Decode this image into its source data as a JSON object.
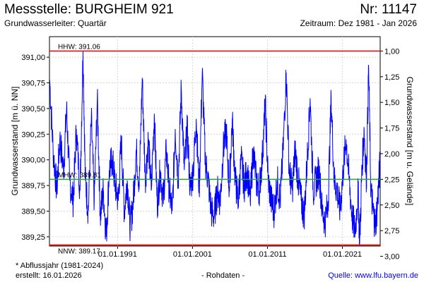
{
  "header": {
    "title": "Messstelle: BURGHEIM 921",
    "nr": "Nr: 11147",
    "aquifer": "Grundwasserleiter: Quartär",
    "period": "Zeitraum: Dez 1981 - Jan 2026"
  },
  "footer": {
    "abflussjahr": "* Abflussjahr (1981-2024)",
    "erstellt": "erstellt:  16.01.2026",
    "rohdaten": "- Rohdaten -",
    "quelle": "Quelle: www.lfu.bayern.de"
  },
  "chart_data": {
    "type": "line",
    "ylabel_left": "Grundwasserstand [m ü. NN]",
    "ylabel_right": "Grundwasserstand [m u. Gelände]",
    "ylim_left": [
      389.16,
      391.2
    ],
    "yticks_left": [
      "391,00",
      "390,75",
      "390,50",
      "390,25",
      "390,00",
      "389,75",
      "389,50",
      "389,25"
    ],
    "yticks_left_values": [
      391.0,
      390.75,
      390.5,
      390.25,
      390.0,
      389.75,
      389.5,
      389.25
    ],
    "yticks_right": [
      "1,00",
      "1,25",
      "1,50",
      "1,75",
      "2,00",
      "2,25",
      "2,50",
      "2,75",
      "3,00"
    ],
    "yticks_right_values": [
      1.0,
      1.25,
      1.5,
      1.75,
      2.0,
      2.25,
      2.5,
      2.75,
      3.0
    ],
    "xlim": [
      1981.92,
      2026.04
    ],
    "xticks": [
      "01.01.1991",
      "01.01.2001",
      "01.01.2011",
      "01.01.2021"
    ],
    "xticks_values": [
      1991,
      2001,
      2011,
      2021
    ],
    "grid": true,
    "reference_lines": [
      {
        "label": "HHW: 391.06",
        "value": 391.06,
        "color": "#ff0000"
      },
      {
        "label": "MHW: 389.81",
        "value": 389.81,
        "color": "#22aa22"
      },
      {
        "label": "NNW: 389.17",
        "value": 389.17,
        "color": "#ff0000"
      }
    ],
    "series": [
      {
        "color": "#0000ff",
        "points": [
          [
            1981.95,
            390.78
          ],
          [
            1982.4,
            390.1
          ],
          [
            1982.9,
            389.7
          ],
          [
            1983.3,
            390.2
          ],
          [
            1983.8,
            389.9
          ],
          [
            1984.2,
            390.5
          ],
          [
            1984.6,
            389.8
          ],
          [
            1985.1,
            389.6
          ],
          [
            1985.5,
            390.3
          ],
          [
            1986.0,
            389.7
          ],
          [
            1986.4,
            391.06
          ],
          [
            1986.7,
            389.8
          ],
          [
            1987.1,
            389.5
          ],
          [
            1987.5,
            390.4
          ],
          [
            1987.9,
            389.6
          ],
          [
            1988.3,
            390.6
          ],
          [
            1988.7,
            389.45
          ],
          [
            1989.1,
            389.7
          ],
          [
            1989.5,
            389.25
          ],
          [
            1989.9,
            389.9
          ],
          [
            1990.3,
            390.0
          ],
          [
            1990.7,
            389.75
          ],
          [
            1991.1,
            389.6
          ],
          [
            1991.5,
            390.2
          ],
          [
            1991.9,
            389.5
          ],
          [
            1992.3,
            389.8
          ],
          [
            1992.7,
            389.35
          ],
          [
            1993.1,
            389.6
          ],
          [
            1993.5,
            390.1
          ],
          [
            1993.9,
            389.75
          ],
          [
            1994.3,
            390.8
          ],
          [
            1994.7,
            389.8
          ],
          [
            1995.1,
            390.2
          ],
          [
            1995.5,
            389.7
          ],
          [
            1995.9,
            390.45
          ],
          [
            1996.3,
            389.55
          ],
          [
            1996.7,
            389.9
          ],
          [
            1997.1,
            389.6
          ],
          [
            1997.5,
            390.1
          ],
          [
            1997.9,
            389.7
          ],
          [
            1998.3,
            389.5
          ],
          [
            1998.7,
            390.3
          ],
          [
            1999.1,
            389.8
          ],
          [
            1999.5,
            390.7
          ],
          [
            1999.9,
            389.9
          ],
          [
            2000.3,
            390.3
          ],
          [
            2000.7,
            389.7
          ],
          [
            2001.1,
            389.9
          ],
          [
            2001.5,
            390.4
          ],
          [
            2001.9,
            389.7
          ],
          [
            2002.3,
            390.85
          ],
          [
            2002.7,
            390.0
          ],
          [
            2003.1,
            389.8
          ],
          [
            2003.5,
            389.5
          ],
          [
            2003.9,
            389.45
          ],
          [
            2004.3,
            389.7
          ],
          [
            2004.7,
            389.6
          ],
          [
            2005.1,
            390.1
          ],
          [
            2005.5,
            390.3
          ],
          [
            2005.9,
            389.7
          ],
          [
            2006.3,
            390.4
          ],
          [
            2006.7,
            389.8
          ],
          [
            2007.1,
            389.6
          ],
          [
            2007.5,
            390.0
          ],
          [
            2007.9,
            389.75
          ],
          [
            2008.3,
            389.9
          ],
          [
            2008.7,
            389.6
          ],
          [
            2009.1,
            390.1
          ],
          [
            2009.5,
            389.8
          ],
          [
            2009.9,
            389.7
          ],
          [
            2010.3,
            390.0
          ],
          [
            2010.7,
            390.55
          ],
          [
            2011.1,
            389.8
          ],
          [
            2011.5,
            389.6
          ],
          [
            2011.9,
            389.5
          ],
          [
            2012.3,
            389.8
          ],
          [
            2012.7,
            389.6
          ],
          [
            2013.1,
            390.1
          ],
          [
            2013.5,
            390.85
          ],
          [
            2013.9,
            389.9
          ],
          [
            2014.3,
            389.7
          ],
          [
            2014.7,
            390.1
          ],
          [
            2015.1,
            389.8
          ],
          [
            2015.5,
            389.6
          ],
          [
            2015.9,
            389.45
          ],
          [
            2016.3,
            390.0
          ],
          [
            2016.7,
            390.6
          ],
          [
            2017.1,
            389.7
          ],
          [
            2017.5,
            389.8
          ],
          [
            2017.9,
            389.9
          ],
          [
            2018.3,
            389.5
          ],
          [
            2018.7,
            389.4
          ],
          [
            2019.1,
            389.6
          ],
          [
            2019.5,
            390.6
          ],
          [
            2019.9,
            389.8
          ],
          [
            2020.3,
            389.7
          ],
          [
            2020.7,
            389.5
          ],
          [
            2021.1,
            389.9
          ],
          [
            2021.5,
            390.2
          ],
          [
            2021.9,
            389.8
          ],
          [
            2022.3,
            389.45
          ],
          [
            2022.7,
            389.3
          ],
          [
            2023.1,
            389.7
          ],
          [
            2023.3,
            389.17
          ],
          [
            2023.6,
            389.9
          ],
          [
            2023.9,
            390.3
          ],
          [
            2024.2,
            389.8
          ],
          [
            2024.5,
            390.9
          ],
          [
            2024.8,
            389.7
          ],
          [
            2025.1,
            389.5
          ],
          [
            2025.4,
            389.35
          ],
          [
            2025.7,
            389.6
          ],
          [
            2026.0,
            389.95
          ]
        ]
      }
    ]
  }
}
